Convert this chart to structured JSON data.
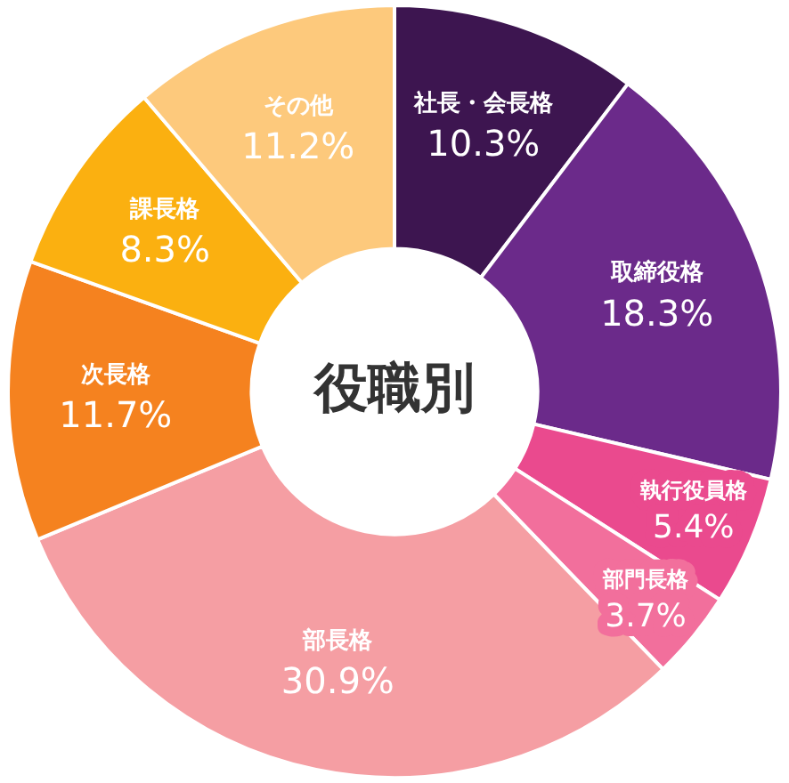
{
  "chart_data": {
    "type": "donut",
    "title": "役職別",
    "categories": [
      "社長・会長格",
      "取締役格",
      "執行役員格",
      "部門長格",
      "部長格",
      "次長格",
      "課長格",
      "その他"
    ],
    "values": [
      10.3,
      18.3,
      5.4,
      3.7,
      30.9,
      11.7,
      8.3,
      11.2
    ],
    "colors": [
      "#3d1550",
      "#6b2a8a",
      "#ea4a8e",
      "#f26f9c",
      "#f59ea3",
      "#f5821f",
      "#fbb010",
      "#fdc97c"
    ],
    "value_labels": [
      "10.3%",
      "18.3%",
      "5.4%",
      "3.7%",
      "30.9%",
      "11.7%",
      "8.3%",
      "11.2%"
    ],
    "legend": false
  }
}
